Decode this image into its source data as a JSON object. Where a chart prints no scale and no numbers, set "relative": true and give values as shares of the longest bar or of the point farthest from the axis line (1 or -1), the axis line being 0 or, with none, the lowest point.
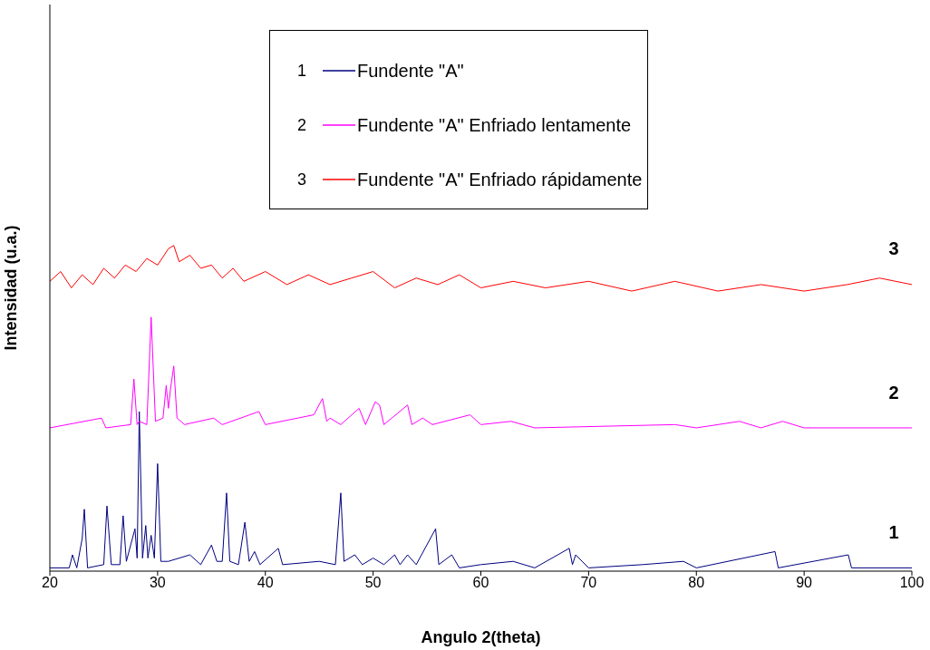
{
  "chart_data": {
    "type": "line",
    "relative": true,
    "xlabel": "Angulo 2(theta)",
    "ylabel": "Intensidad (u.a.)",
    "xlim": [
      20,
      100
    ],
    "xticks": [
      20,
      30,
      40,
      50,
      60,
      70,
      80,
      90,
      100
    ],
    "legend": "top",
    "marker": "none",
    "line_style": "solid",
    "annotations": [
      "1",
      "2",
      "3",
      "3",
      "2",
      "1"
    ],
    "series": [
      {
        "name": "Fundente \"A\"",
        "color": "#000080",
        "x": [
          20,
          21.8,
          22.1,
          22.5,
          23.0,
          23.2,
          23.5,
          25,
          25.3,
          25.7,
          26.5,
          26.8,
          27.1,
          27.9,
          28.1,
          28.3,
          28.6,
          28.9,
          29.1,
          29.4,
          29.7,
          30.0,
          30.3,
          31,
          33,
          34,
          35,
          35.5,
          36,
          36.4,
          36.7,
          37.5,
          38.1,
          38.5,
          39,
          39.5,
          41.2,
          41.6,
          45,
          46.5,
          47.0,
          47.3,
          48.3,
          49,
          50,
          51,
          52,
          52.5,
          53.2,
          54,
          55.8,
          56.1,
          57.3,
          58,
          60,
          63,
          65,
          68.2,
          68.5,
          68.8,
          70,
          75,
          78.8,
          80,
          87.3,
          87.6,
          94.1,
          94.4,
          100
        ],
        "values": [
          0.01,
          0.01,
          0.05,
          0.01,
          0.1,
          0.19,
          0.01,
          0.02,
          0.2,
          0.02,
          0.02,
          0.17,
          0.03,
          0.13,
          0.04,
          0.49,
          0.04,
          0.14,
          0.04,
          0.11,
          0.04,
          0.33,
          0.03,
          0.03,
          0.05,
          0.02,
          0.08,
          0.03,
          0.03,
          0.24,
          0.03,
          0.02,
          0.15,
          0.03,
          0.06,
          0.02,
          0.07,
          0.02,
          0.03,
          0.02,
          0.24,
          0.03,
          0.05,
          0.02,
          0.04,
          0.02,
          0.05,
          0.02,
          0.05,
          0.02,
          0.13,
          0.02,
          0.05,
          0.01,
          0.02,
          0.03,
          0.01,
          0.07,
          0.02,
          0.05,
          0.01,
          0.02,
          0.03,
          0.01,
          0.06,
          0.01,
          0.05,
          0.01,
          0.01
        ]
      },
      {
        "name": "Fundente \"A\" Enfriado lentamente",
        "color": "#ff00ff",
        "x": [
          20,
          24.8,
          25.2,
          27.5,
          27.8,
          28.1,
          28.3,
          29,
          29.4,
          29.8,
          30.5,
          30.8,
          31.0,
          31.2,
          31.5,
          31.8,
          32.5,
          35.2,
          36,
          39.4,
          40,
          44.5,
          45.3,
          45.7,
          46,
          47,
          48.7,
          49.3,
          50.2,
          50.6,
          51,
          53.2,
          53.6,
          54.6,
          55.5,
          59,
          60,
          62.8,
          65,
          78,
          80,
          84,
          86,
          88,
          90,
          100
        ],
        "values": [
          0.44,
          0.47,
          0.44,
          0.45,
          0.59,
          0.45,
          0.46,
          0.45,
          0.78,
          0.46,
          0.47,
          0.57,
          0.5,
          0.56,
          0.63,
          0.47,
          0.45,
          0.47,
          0.45,
          0.49,
          0.45,
          0.48,
          0.53,
          0.46,
          0.47,
          0.45,
          0.5,
          0.45,
          0.52,
          0.51,
          0.45,
          0.51,
          0.45,
          0.47,
          0.45,
          0.48,
          0.45,
          0.46,
          0.44,
          0.45,
          0.44,
          0.46,
          0.44,
          0.46,
          0.44,
          0.44
        ]
      },
      {
        "name": "Fundente \"A\" Enfriado rápidamente",
        "color": "#ff0000",
        "x": [
          20,
          21,
          22,
          23,
          24,
          25,
          26,
          27,
          28,
          29,
          30,
          31,
          31.5,
          32,
          33,
          34,
          35,
          36,
          37,
          38,
          40,
          42,
          44,
          46,
          48,
          50,
          52,
          54,
          56,
          58,
          60,
          63,
          66,
          70,
          74,
          78,
          82,
          86,
          90,
          94,
          97,
          100
        ],
        "values": [
          0.89,
          0.92,
          0.87,
          0.91,
          0.88,
          0.93,
          0.9,
          0.94,
          0.92,
          0.96,
          0.94,
          0.99,
          1.0,
          0.95,
          0.97,
          0.93,
          0.94,
          0.9,
          0.93,
          0.89,
          0.92,
          0.88,
          0.91,
          0.88,
          0.9,
          0.92,
          0.87,
          0.9,
          0.88,
          0.91,
          0.87,
          0.89,
          0.87,
          0.89,
          0.86,
          0.89,
          0.86,
          0.88,
          0.86,
          0.88,
          0.9,
          0.88
        ]
      }
    ]
  }
}
